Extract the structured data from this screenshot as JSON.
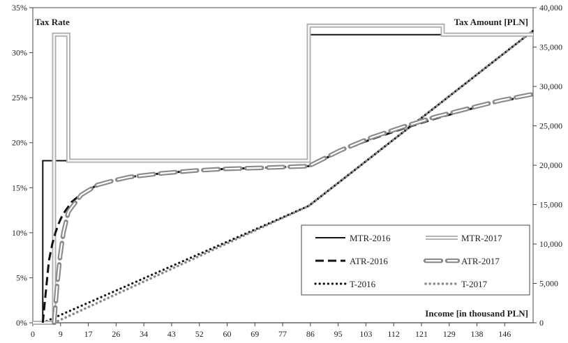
{
  "chart_data": {
    "type": "line",
    "left_axis_title": "Tax Rate",
    "right_axis_title": "Tax Amount [PLN]",
    "x_axis_title": "Income [in thousand PLN]",
    "x_range": [
      0,
      155
    ],
    "y_left_range": [
      0,
      0.35
    ],
    "y_right_range": [
      0,
      40000
    ],
    "x_ticks": [
      "0",
      "9",
      "17",
      "26",
      "34",
      "43",
      "52",
      "60",
      "69",
      "77",
      "86",
      "95",
      "103",
      "112",
      "121",
      "129",
      "138",
      "146"
    ],
    "x_tick_values": [
      0,
      8.6,
      17.2,
      25.8,
      34.4,
      43.0,
      51.6,
      60.2,
      68.8,
      77.4,
      86.0,
      94.6,
      103.2,
      111.8,
      120.4,
      129.0,
      137.6,
      146.2
    ],
    "y_left_ticks": [
      "0%",
      "5%",
      "10%",
      "15%",
      "20%",
      "25%",
      "30%",
      "35%"
    ],
    "y_left_tick_values": [
      0,
      0.05,
      0.1,
      0.15,
      0.2,
      0.25,
      0.3,
      0.35
    ],
    "y_right_ticks": [
      "0",
      "5,000",
      "10,000",
      "15,000",
      "20,000",
      "25,000",
      "30,000",
      "35,000",
      "40,000"
    ],
    "y_right_tick_values": [
      0,
      5000,
      10000,
      15000,
      20000,
      25000,
      30000,
      35000,
      40000
    ],
    "series": [
      {
        "name": "MTR-2016",
        "axis": "left",
        "style": "solid-black",
        "points": [
          [
            0,
            0
          ],
          [
            3.1,
            0
          ],
          [
            3.1,
            0.18
          ],
          [
            85.5,
            0.18
          ],
          [
            85.5,
            0.32
          ],
          [
            155,
            0.32
          ]
        ]
      },
      {
        "name": "MTR-2017",
        "axis": "left",
        "style": "double-grey",
        "points": [
          [
            0,
            0
          ],
          [
            6.6,
            0
          ],
          [
            6.6,
            0.32
          ],
          [
            11.0,
            0.32
          ],
          [
            11.0,
            0.18
          ],
          [
            85.5,
            0.18
          ],
          [
            85.5,
            0.33
          ],
          [
            127,
            0.33
          ],
          [
            127,
            0.32
          ],
          [
            155,
            0.32
          ]
        ]
      },
      {
        "name": "ATR-2016",
        "axis": "left",
        "style": "dashed-black",
        "points": [
          [
            3.1,
            0
          ],
          [
            5,
            0.069
          ],
          [
            6,
            0.087
          ],
          [
            7,
            0.1
          ],
          [
            8,
            0.11
          ],
          [
            9,
            0.118
          ],
          [
            10,
            0.124
          ],
          [
            12,
            0.134
          ],
          [
            15,
            0.143
          ],
          [
            20,
            0.153
          ],
          [
            25,
            0.158
          ],
          [
            30,
            0.162
          ],
          [
            40,
            0.166
          ],
          [
            50,
            0.169
          ],
          [
            60,
            0.171
          ],
          [
            70,
            0.172
          ],
          [
            85.5,
            0.174
          ],
          [
            95,
            0.19
          ],
          [
            105,
            0.204
          ],
          [
            115,
            0.216
          ],
          [
            125,
            0.227
          ],
          [
            135,
            0.237
          ],
          [
            145,
            0.246
          ],
          [
            155,
            0.253
          ]
        ]
      },
      {
        "name": "ATR-2017",
        "axis": "left",
        "style": "double-grey-dashed",
        "points": [
          [
            6.6,
            0
          ],
          [
            7.5,
            0.04
          ],
          [
            8.5,
            0.075
          ],
          [
            9.5,
            0.1
          ],
          [
            11.0,
            0.123
          ],
          [
            12,
            0.128
          ],
          [
            15,
            0.142
          ],
          [
            20,
            0.153
          ],
          [
            25,
            0.158
          ],
          [
            30,
            0.162
          ],
          [
            40,
            0.166
          ],
          [
            50,
            0.169
          ],
          [
            60,
            0.171
          ],
          [
            70,
            0.172
          ],
          [
            85.5,
            0.174
          ],
          [
            95,
            0.191
          ],
          [
            105,
            0.206
          ],
          [
            115,
            0.218
          ],
          [
            125,
            0.229
          ],
          [
            135,
            0.238
          ],
          [
            145,
            0.247
          ],
          [
            155,
            0.254
          ]
        ]
      },
      {
        "name": "T-2016",
        "axis": "right",
        "style": "dotted-black",
        "points": [
          [
            3.1,
            0
          ],
          [
            85.5,
            14840
          ],
          [
            100,
            19480
          ],
          [
            110,
            22680
          ],
          [
            120,
            25880
          ],
          [
            130,
            29080
          ],
          [
            140,
            32280
          ],
          [
            155,
            37080
          ]
        ]
      },
      {
        "name": "T-2017",
        "axis": "right",
        "style": "dotted-grey",
        "points": [
          [
            6.6,
            0
          ],
          [
            85.5,
            14840
          ],
          [
            100,
            19480
          ],
          [
            110,
            22680
          ],
          [
            120,
            25880
          ],
          [
            130,
            29080
          ],
          [
            140,
            32280
          ],
          [
            155,
            37080
          ]
        ]
      }
    ],
    "legend": {
      "position": "bottom-right",
      "rows": [
        [
          "MTR-2016",
          "MTR-2017"
        ],
        [
          "ATR-2016",
          "ATR-2017"
        ],
        [
          "T-2016",
          "T-2017"
        ]
      ]
    }
  }
}
